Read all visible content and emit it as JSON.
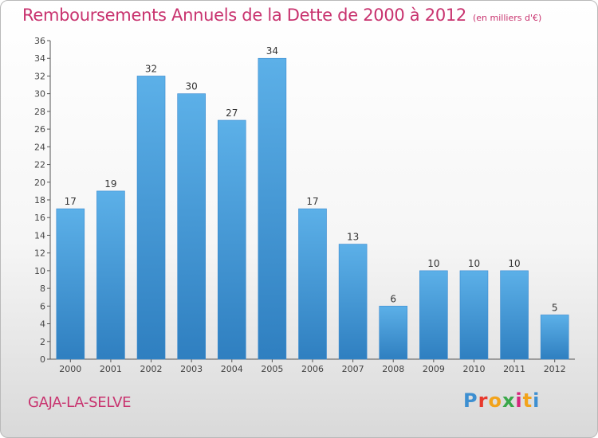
{
  "header": {
    "title": "Remboursements Annuels de la Dette de 2000 à 2012",
    "subtitle": "(en milliers d'€)"
  },
  "footer": {
    "town": "GAJA-LA-SELVE",
    "logo": {
      "letters": [
        "P",
        "r",
        "o",
        "x",
        "i",
        "t",
        "i"
      ],
      "colors": [
        "#3d8fd1",
        "#e8392d",
        "#f2a31b",
        "#3aa84a",
        "#d6267c",
        "#f2a31b",
        "#3d8fd1"
      ]
    }
  },
  "colors": {
    "accent": "#c8326e",
    "bar_light": "#5cb0e8",
    "bar_dark": "#2f7fc0",
    "axis": "#555555"
  },
  "chart_data": {
    "type": "bar",
    "title": "Remboursements Annuels de la Dette de 2000 à 2012",
    "subtitle": "(en milliers d'€)",
    "categories": [
      "2000",
      "2001",
      "2002",
      "2003",
      "2004",
      "2005",
      "2006",
      "2007",
      "2008",
      "2009",
      "2010",
      "2011",
      "2012"
    ],
    "values": [
      17,
      19,
      32,
      30,
      27,
      34,
      17,
      13,
      6,
      10,
      10,
      10,
      5
    ],
    "xlabel": "",
    "ylabel": "",
    "ylim": [
      0,
      36
    ],
    "yticks": [
      0,
      2,
      4,
      6,
      8,
      10,
      12,
      14,
      16,
      18,
      20,
      22,
      24,
      26,
      28,
      30,
      32,
      34,
      36
    ],
    "grid": false,
    "legend": "none"
  }
}
